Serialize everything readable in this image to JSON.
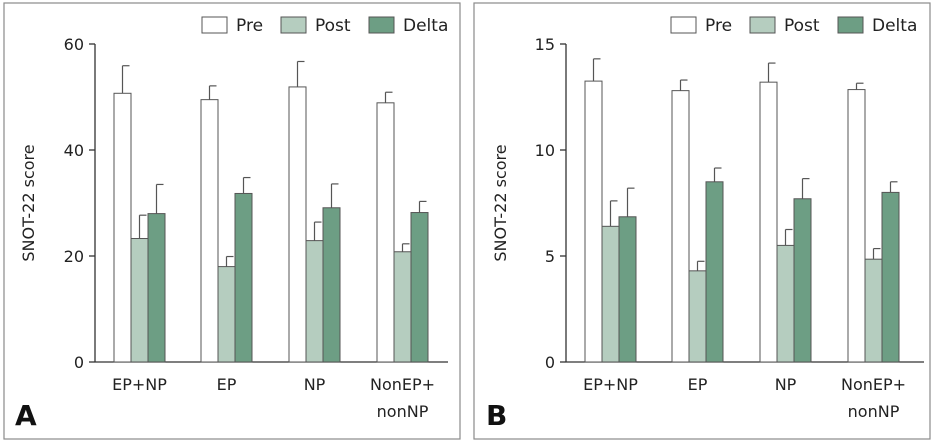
{
  "colors": {
    "Pre": "#ffffff",
    "Post": "#b5cdbf",
    "Delta": "#6d9e84"
  },
  "chart_data": [
    {
      "type": "bar",
      "panel_label": "A",
      "categories": [
        [
          "EP+NP"
        ],
        [
          "EP"
        ],
        [
          "NP"
        ],
        [
          "NonEP+",
          "nonNP"
        ]
      ],
      "ylabel": "SNOT-22 score",
      "ylim": [
        0,
        60
      ],
      "yticks": [
        "0",
        "20",
        "40",
        "60"
      ],
      "series": [
        {
          "name": "Pre",
          "values": [
            50.7,
            49.5,
            51.9,
            48.9
          ],
          "errors": [
            5.2,
            2.6,
            4.8,
            2.0
          ]
        },
        {
          "name": "Post",
          "values": [
            23.3,
            18.0,
            22.9,
            20.8
          ],
          "errors": [
            4.4,
            1.9,
            3.5,
            1.5
          ]
        },
        {
          "name": "Delta",
          "values": [
            28.0,
            31.8,
            29.1,
            28.2
          ],
          "errors": [
            5.5,
            3.0,
            4.5,
            2.1
          ]
        }
      ]
    },
    {
      "type": "bar",
      "panel_label": "B",
      "categories": [
        [
          "EP+NP"
        ],
        [
          "EP"
        ],
        [
          "NP"
        ],
        [
          "NonEP+",
          "nonNP"
        ]
      ],
      "ylabel": "SNOT-22 score",
      "ylim": [
        0,
        15
      ],
      "yticks": [
        "0",
        "5",
        "10",
        "15"
      ],
      "series": [
        {
          "name": "Pre",
          "values": [
            13.25,
            12.8,
            13.2,
            12.85
          ],
          "errors": [
            1.05,
            0.5,
            0.9,
            0.3
          ]
        },
        {
          "name": "Post",
          "values": [
            6.4,
            4.3,
            5.5,
            4.85
          ],
          "errors": [
            1.2,
            0.45,
            0.75,
            0.5
          ]
        },
        {
          "name": "Delta",
          "values": [
            6.85,
            8.5,
            7.7,
            8.0
          ],
          "errors": [
            1.35,
            0.65,
            0.95,
            0.5
          ]
        }
      ]
    }
  ]
}
